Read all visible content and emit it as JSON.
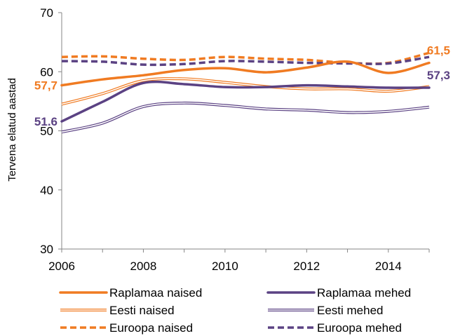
{
  "chart_data": {
    "type": "line",
    "title": "",
    "xlabel": "",
    "ylabel": "Tervena elatud aastad",
    "xlim": [
      2006,
      2015
    ],
    "ylim": [
      30,
      70
    ],
    "yticks": [
      30,
      40,
      50,
      60,
      70
    ],
    "xticks": [
      2006,
      2008,
      2010,
      2012,
      2014
    ],
    "x": [
      2006,
      2007,
      2008,
      2009,
      2010,
      2011,
      2012,
      2013,
      2014,
      2015
    ],
    "grid": false,
    "legend_position": "bottom",
    "colors": {
      "orange": "#f07b22",
      "purple": "#5b4283"
    },
    "series": [
      {
        "name": "Raplamaa naised",
        "color": "#f07b22",
        "style": "thick",
        "values": [
          57.7,
          58.7,
          59.4,
          60.3,
          60.6,
          59.9,
          60.7,
          61.7,
          59.8,
          61.5
        ]
      },
      {
        "name": "Raplamaa mehed",
        "color": "#5b4283",
        "style": "thick",
        "values": [
          51.6,
          54.9,
          58.1,
          57.9,
          57.4,
          57.4,
          57.7,
          57.5,
          57.3,
          57.3
        ]
      },
      {
        "name": "Eesti naised",
        "color": "#f07b22",
        "style": "double",
        "values": [
          54.5,
          56.3,
          58.5,
          58.8,
          58.2,
          57.5,
          57.1,
          57.1,
          56.7,
          57.5
        ]
      },
      {
        "name": "Eesti mehed",
        "color": "#5b4283",
        "style": "double",
        "values": [
          49.8,
          51.3,
          54.1,
          54.7,
          54.3,
          53.7,
          53.5,
          53.1,
          53.3,
          54.0
        ]
      },
      {
        "name": "Euroopa naised",
        "color": "#f07b22",
        "style": "dashed",
        "values": [
          62.5,
          62.6,
          62.2,
          62.0,
          62.5,
          62.2,
          62.0,
          61.5,
          61.5,
          63.2
        ]
      },
      {
        "name": "Euroopa mehed",
        "color": "#5b4283",
        "style": "dashed",
        "values": [
          61.8,
          61.7,
          61.2,
          61.3,
          61.8,
          61.7,
          61.5,
          61.4,
          61.4,
          62.5
        ]
      }
    ],
    "annotations": [
      {
        "text": "57,7",
        "series": "Raplamaa naised",
        "x": 2006,
        "y": 57.7,
        "color": "#f07b22",
        "side": "left"
      },
      {
        "text": "51.6",
        "series": "Raplamaa mehed",
        "x": 2006,
        "y": 51.6,
        "color": "#5b4283",
        "side": "left"
      },
      {
        "text": "61,5",
        "series": "Raplamaa naised",
        "x": 2015,
        "y": 61.5,
        "color": "#f07b22",
        "side": "right"
      },
      {
        "text": "57,3",
        "series": "Raplamaa mehed",
        "x": 2015,
        "y": 57.3,
        "color": "#5b4283",
        "side": "right"
      }
    ]
  }
}
